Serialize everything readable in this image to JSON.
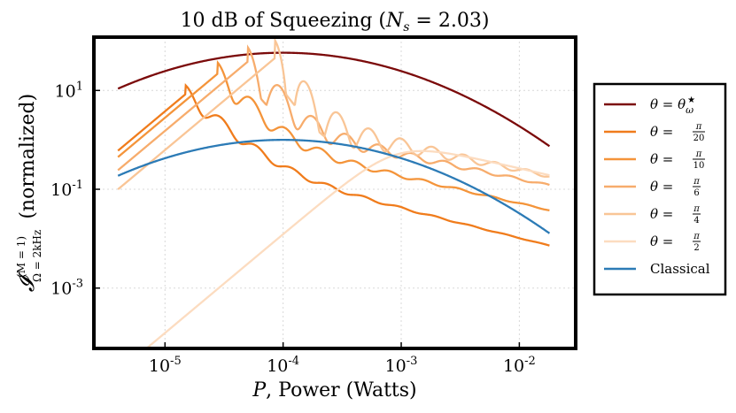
{
  "chart_data": {
    "type": "line",
    "title": "10 dB of Squeezing (N_s = 2.03)",
    "title_parts": {
      "main": "10 dB of Squeezing (",
      "var": "N",
      "sub": "s",
      "rest": " = 2.03)"
    },
    "xlabel": "P, Power (Watts)",
    "xlabel_parts": {
      "var": "P",
      "rest": ", Power (Watts)"
    },
    "ylabel": "I^(M=1)_(Ω=2kHz) (normalized)",
    "ylabel_parts": {
      "sym": "𝓘",
      "sup": "(M = 1)",
      "sub": "Ω = 2kHz",
      "rest": "(normalized)"
    },
    "x_scale": "log",
    "y_scale": "log",
    "xlim": [
      2.5e-06,
      0.03
    ],
    "ylim": [
      6e-05,
      120
    ],
    "x_ticks": [
      {
        "value": 1e-05,
        "base": "10",
        "exp": "-5"
      },
      {
        "value": 0.0001,
        "base": "10",
        "exp": "-4"
      },
      {
        "value": 0.001,
        "base": "10",
        "exp": "-3"
      },
      {
        "value": 0.01,
        "base": "10",
        "exp": "-2"
      }
    ],
    "y_ticks": [
      {
        "value": 0.001,
        "base": "10",
        "exp": "-3"
      },
      {
        "value": 0.1,
        "base": "10",
        "exp": "-1"
      },
      {
        "value": 10,
        "base": "10",
        "exp": "1"
      }
    ],
    "grid": true,
    "legend_position": "right-outside",
    "series": [
      {
        "name": "θ = θω*",
        "legend": {
          "lhs": "θ = θ",
          "sub": "ω",
          "sup": "★"
        },
        "color": "#7b0a0a",
        "kind": "opt",
        "params": {
          "A": 58,
          "p0": 0.0001,
          "w": 1.1
        }
      },
      {
        "name": "θ = π/20",
        "legend": {
          "lhs": "θ = ",
          "num": "π",
          "den": "20"
        },
        "color": "#f07c1c",
        "kind": "osc",
        "params": {
          "A": 8.5,
          "p0": 1.5e-05,
          "a1": 2.0,
          "a2": 0.6,
          "c1": 2.2,
          "ratio": 2.0,
          "ripple": 0.1,
          "pw": 0.28
        }
      },
      {
        "name": "θ = π/10",
        "legend": {
          "lhs": "θ = ",
          "num": "π",
          "den": "10"
        },
        "color": "#f4943a",
        "kind": "osc",
        "params": {
          "A": 22,
          "p0": 2.8e-05,
          "a1": 2.0,
          "a2": 0.55,
          "c1": 2.6,
          "ratio": 1.95,
          "ripple": 0.14,
          "pw": 0.28
        }
      },
      {
        "name": "θ = π/6",
        "legend": {
          "lhs": "θ = ",
          "num": "π",
          "den": "6"
        },
        "color": "#f7ac6c",
        "kind": "osc",
        "params": {
          "A": 38,
          "p0": 5e-05,
          "a1": 2.0,
          "a2": 0.5,
          "c1": 3.0,
          "ratio": 1.9,
          "ripple": 0.22,
          "pw": 0.28
        }
      },
      {
        "name": "θ = π/4",
        "legend": {
          "lhs": "θ = ",
          "num": "π",
          "den": "4"
        },
        "color": "#f9c596",
        "kind": "osc",
        "params": {
          "A": 45,
          "p0": 8.5e-05,
          "a1": 2.0,
          "a2": 0.5,
          "c1": 3.4,
          "ratio": 1.85,
          "ripple": 0.3,
          "pw": 0.28
        }
      },
      {
        "name": "θ = π/2",
        "legend": {
          "lhs": "θ = ",
          "num": "π",
          "den": "2"
        },
        "color": "#fcdcc0",
        "kind": "smooth",
        "params": {
          "A": 1.0,
          "p0": 0.0009,
          "a1": 2.0,
          "a2": 0.55
        }
      },
      {
        "name": "Classical",
        "legend": {
          "lhs": "Classical"
        },
        "color": "#2c7bb6",
        "kind": "opt",
        "params": {
          "A": 1.0,
          "p0": 0.0001,
          "w": 1.1
        }
      }
    ],
    "x_range_data": [
      4e-06,
      0.018
    ]
  }
}
